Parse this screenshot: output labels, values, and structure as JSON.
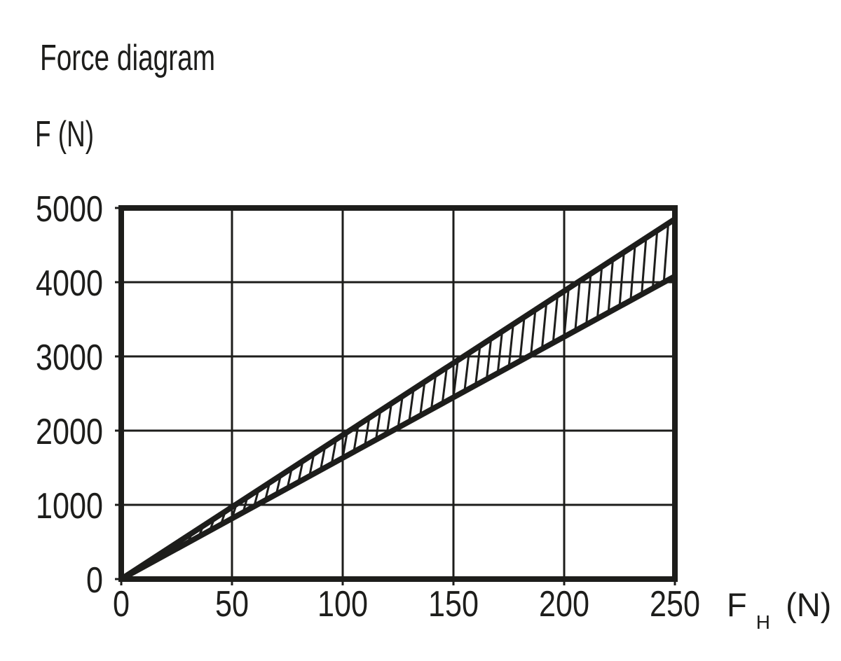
{
  "title": "Force diagram",
  "y_axis_title": "F (N)",
  "x_axis_title": {
    "main": "F",
    "sub": "H",
    "unit": "(N)"
  },
  "chart_data": {
    "type": "line",
    "title": "Force diagram",
    "xlabel": "F_H (N)",
    "ylabel": "F (N)",
    "xlim": [
      0,
      250
    ],
    "ylim": [
      0,
      5000
    ],
    "x_ticks": [
      0,
      50,
      100,
      150,
      200,
      250
    ],
    "y_ticks": [
      0,
      1000,
      2000,
      3000,
      4000,
      5000
    ],
    "grid": true,
    "legend": "none",
    "series": [
      {
        "name": "upper-limit-line",
        "x": [
          0,
          250
        ],
        "y": [
          0,
          4850
        ]
      },
      {
        "name": "lower-limit-line",
        "x": [
          0,
          250
        ],
        "y": [
          0,
          4080
        ]
      }
    ],
    "band": {
      "style": "hatched",
      "between": [
        "upper-limit-line",
        "lower-limit-line"
      ],
      "hatch_start_x": 20,
      "hatch_step_x": 5,
      "hatch_lean_x": 2
    },
    "colors": {
      "ink": "#1d1d1b",
      "background": "#ffffff"
    }
  }
}
